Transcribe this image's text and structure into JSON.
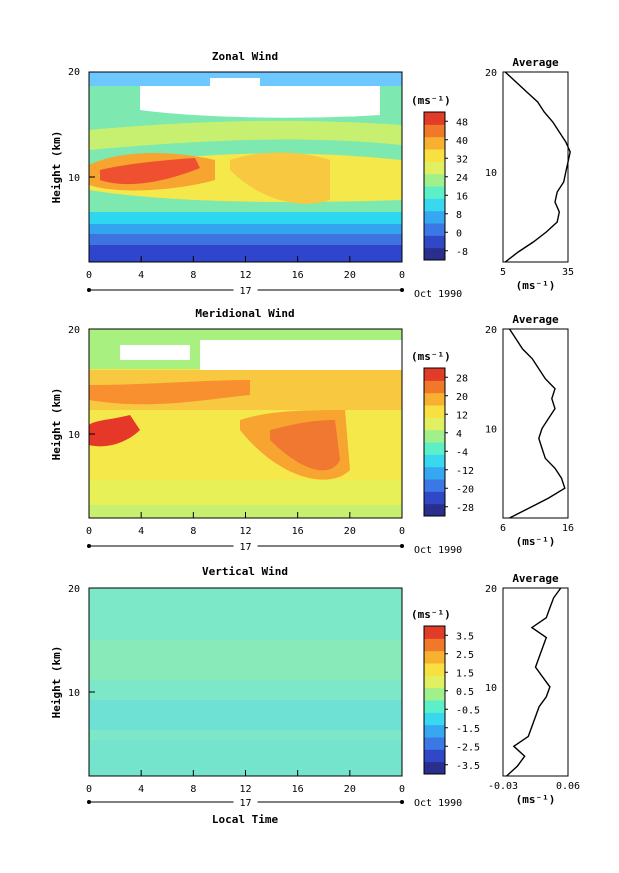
{
  "chart_data": [
    {
      "type": "heatmap",
      "title": "Zonal Wind",
      "xlabel": "",
      "ylabel": "Height (km)",
      "xlim": [
        0,
        24
      ],
      "ylim": [
        1,
        20
      ],
      "xticks": [
        "0",
        "4",
        "8",
        "12",
        "16",
        "20",
        "0"
      ],
      "yticks": [
        "10",
        "20"
      ],
      "day_label": "17",
      "date_label": "Oct 1990",
      "colorbar": {
        "unit": "(ms⁻¹)",
        "ticks": [
          "48",
          "40",
          "32",
          "24",
          "16",
          "8",
          "0",
          "-8"
        ],
        "range": [
          -12,
          52
        ]
      },
      "average": {
        "title": "Average",
        "xticks": [
          "5",
          "35"
        ],
        "xlim": [
          5,
          35
        ],
        "xlabel": "(ms⁻¹)",
        "height_km": [
          1,
          2,
          3,
          4,
          5,
          6,
          7,
          8,
          9,
          10,
          11,
          12,
          13,
          14,
          15,
          16,
          17,
          18,
          19,
          20
        ],
        "values": [
          6,
          12,
          19,
          25,
          30,
          31,
          29,
          30,
          33,
          34,
          35,
          36,
          34,
          31,
          28,
          24,
          21,
          16,
          11,
          6
        ]
      }
    },
    {
      "type": "heatmap",
      "title": "Meridional Wind",
      "xlabel": "",
      "ylabel": "Height (km)",
      "xlim": [
        0,
        24
      ],
      "ylim": [
        1,
        20
      ],
      "xticks": [
        "0",
        "4",
        "8",
        "12",
        "16",
        "20",
        "0"
      ],
      "yticks": [
        "10",
        "20"
      ],
      "day_label": "17",
      "date_label": "Oct 1990",
      "colorbar": {
        "unit": "(ms⁻¹)",
        "ticks": [
          "28",
          "20",
          "12",
          "4",
          "-4",
          "-12",
          "-20",
          "-28"
        ],
        "range": [
          -32,
          32
        ]
      },
      "average": {
        "title": "Average",
        "xticks": [
          "6",
          "16"
        ],
        "xlim": [
          6,
          16
        ],
        "xlabel": "(ms⁻¹)",
        "height_km": [
          1,
          2,
          3,
          4,
          5,
          6,
          7,
          8,
          9,
          10,
          11,
          12,
          13,
          14,
          15,
          16,
          17,
          18,
          19,
          20
        ],
        "values": [
          7,
          10,
          13,
          15.5,
          15,
          14,
          12.5,
          12,
          11.5,
          12,
          13,
          14,
          13.5,
          14,
          12.5,
          11.5,
          10.5,
          9,
          8,
          7
        ]
      }
    },
    {
      "type": "heatmap",
      "title": "Vertical Wind",
      "xlabel": "Local Time",
      "ylabel": "Height (km)",
      "xlim": [
        0,
        24
      ],
      "ylim": [
        1,
        20
      ],
      "xticks": [
        "0",
        "4",
        "8",
        "12",
        "16",
        "20",
        "0"
      ],
      "yticks": [
        "10",
        "20"
      ],
      "day_label": "17",
      "date_label": "Oct 1990",
      "colorbar": {
        "unit": "(ms⁻¹)",
        "ticks": [
          "3.5",
          "2.5",
          "1.5",
          "0.5",
          "-0.5",
          "-1.5",
          "-2.5",
          "-3.5"
        ],
        "range": [
          -4,
          4
        ]
      },
      "average": {
        "title": "Average",
        "xticks": [
          "-0.03",
          "0.06"
        ],
        "xlim": [
          -0.03,
          0.06
        ],
        "xlabel": "(ms⁻¹)",
        "height_km": [
          1,
          2,
          3,
          4,
          5,
          6,
          7,
          8,
          9,
          10,
          11,
          12,
          13,
          14,
          15,
          16,
          17,
          18,
          19,
          20
        ],
        "values": [
          -0.025,
          -0.01,
          0.0,
          -0.015,
          0.005,
          0.01,
          0.015,
          0.02,
          0.03,
          0.035,
          0.025,
          0.015,
          0.02,
          0.025,
          0.03,
          0.01,
          0.03,
          0.035,
          0.04,
          0.05
        ]
      }
    }
  ]
}
